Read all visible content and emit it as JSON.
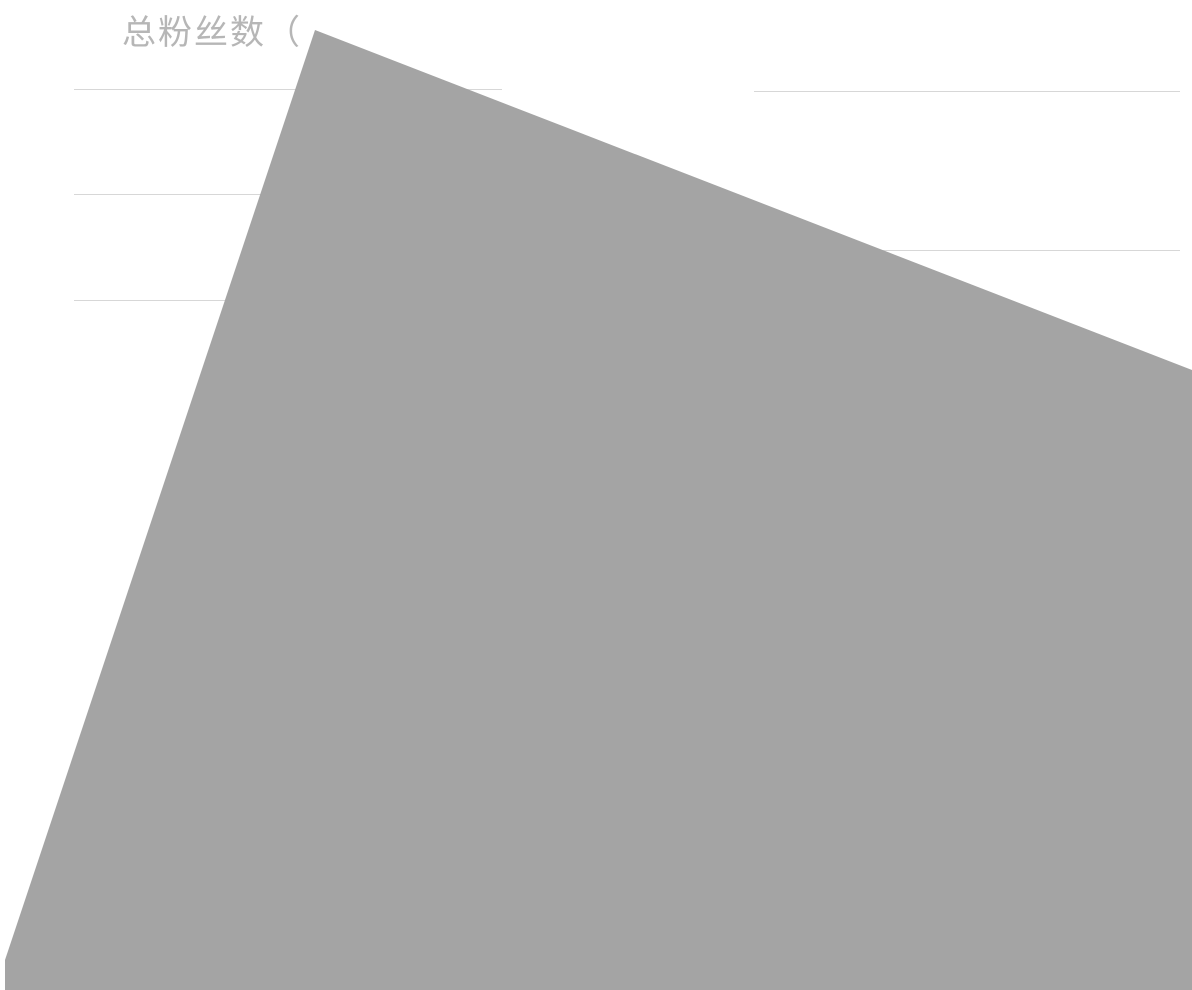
{
  "header": {
    "title_partial": "总粉丝数（"
  },
  "overlay": {
    "color": "#a4a4a4"
  }
}
